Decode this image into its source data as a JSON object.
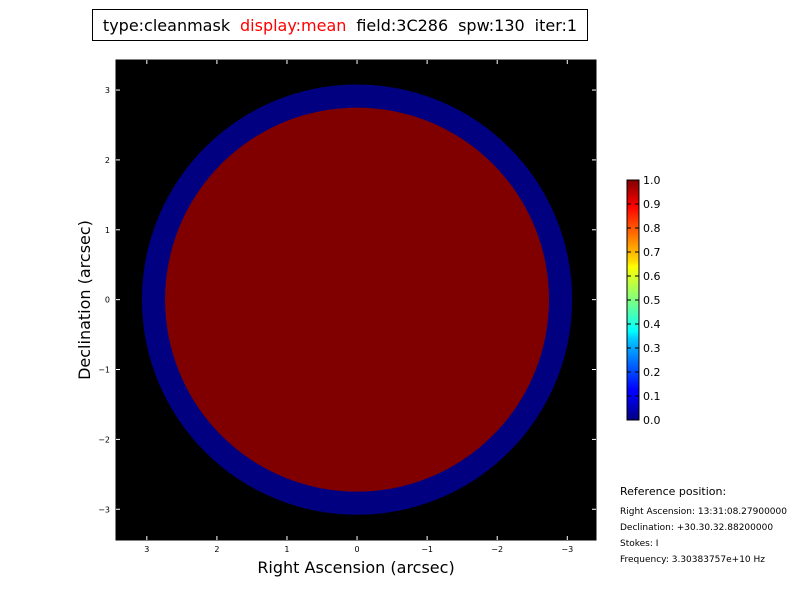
{
  "title": {
    "type": "type:cleanmask",
    "display": "display:mean",
    "field": "field:3C286",
    "spw": "spw:130",
    "iter": "iter:1",
    "display_color": "#ff0000"
  },
  "chart_data": {
    "type": "heatmap",
    "xlabel": "Right Ascension (arcsec)",
    "ylabel": "Declination (arcsec)",
    "xlim": [
      3.44,
      -3.41
    ],
    "ylim": [
      -3.44,
      3.43
    ],
    "xticks": [
      3,
      2,
      1,
      0,
      -1,
      -2,
      -3
    ],
    "xtick_labels": [
      "3",
      "2",
      "1",
      "0",
      "−1",
      "−2",
      "−3"
    ],
    "yticks": [
      3,
      2,
      1,
      0,
      -1,
      -2,
      -3
    ],
    "ytick_labels": [
      "3",
      "2",
      "1",
      "0",
      "−1",
      "−2",
      "−3"
    ],
    "background_value": "none",
    "background_color": "#000000",
    "regions": [
      {
        "shape": "disk",
        "center": [
          0,
          0
        ],
        "radius": 3.07,
        "value": 0.0
      },
      {
        "shape": "disk",
        "center": [
          0,
          0
        ],
        "radius": 2.74,
        "value": 1.0
      }
    ],
    "colormap": "jet",
    "colorbar": {
      "range": [
        0.0,
        1.0
      ],
      "ticks": [
        0.0,
        0.1,
        0.2,
        0.3,
        0.4,
        0.5,
        0.6,
        0.7,
        0.8,
        0.9,
        1.0
      ],
      "tick_labels": [
        "0.0",
        "0.1",
        "0.2",
        "0.3",
        "0.4",
        "0.5",
        "0.6",
        "0.7",
        "0.8",
        "0.9",
        "1.0"
      ]
    }
  },
  "reference": {
    "heading": "Reference position:",
    "ra": "Right Ascension: 13:31:08.27900000",
    "dec": "Declination: +30.30.32.88200000",
    "stokes": "Stokes: I",
    "freq": "Frequency: 3.30383757e+10 Hz"
  }
}
